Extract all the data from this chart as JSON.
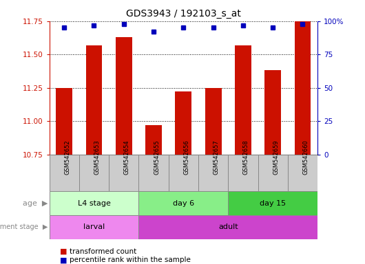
{
  "title": "GDS3943 / 192103_s_at",
  "samples": [
    "GSM542652",
    "GSM542653",
    "GSM542654",
    "GSM542655",
    "GSM542656",
    "GSM542657",
    "GSM542658",
    "GSM542659",
    "GSM542660"
  ],
  "transformed_counts": [
    11.25,
    11.57,
    11.63,
    10.97,
    11.22,
    11.25,
    11.57,
    11.38,
    11.75
  ],
  "percentile_ranks": [
    95,
    97,
    98,
    92,
    95,
    95,
    97,
    95,
    98
  ],
  "ylim_left": [
    10.75,
    11.75
  ],
  "ylim_right": [
    0,
    100
  ],
  "yticks_left": [
    10.75,
    11.0,
    11.25,
    11.5,
    11.75
  ],
  "yticks_right": [
    0,
    25,
    50,
    75,
    100
  ],
  "age_groups": [
    {
      "label": "L4 stage",
      "start": 0,
      "end": 3,
      "color": "#ccffcc"
    },
    {
      "label": "day 6",
      "start": 3,
      "end": 6,
      "color": "#88ee88"
    },
    {
      "label": "day 15",
      "start": 6,
      "end": 9,
      "color": "#44cc44"
    }
  ],
  "dev_groups": [
    {
      "label": "larval",
      "start": 0,
      "end": 3,
      "color": "#ee88ee"
    },
    {
      "label": "adult",
      "start": 3,
      "end": 9,
      "color": "#cc44cc"
    }
  ],
  "bar_color": "#cc1100",
  "dot_color": "#0000bb",
  "grid_color": "#000000",
  "left_tick_color": "#cc1100",
  "right_tick_color": "#0000bb",
  "sample_box_color": "#cccccc",
  "legend_bar_color": "#cc1100",
  "legend_dot_color": "#0000bb"
}
